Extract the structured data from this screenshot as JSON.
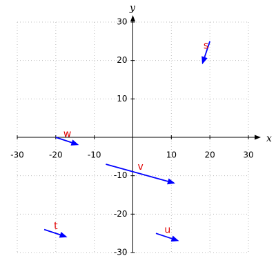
{
  "chart_data": {
    "type": "vector",
    "xlabel": "x",
    "ylabel": "y",
    "xlim": [
      -30,
      30
    ],
    "ylim": [
      -30,
      30
    ],
    "xticks": [
      -30,
      -20,
      -10,
      10,
      20,
      30
    ],
    "yticks": [
      -30,
      -20,
      -10,
      10,
      20,
      30
    ],
    "grid": true,
    "color": "#0000ff",
    "label_color": "#e00000",
    "vectors": [
      {
        "name": "s",
        "x": 20,
        "y": 25,
        "dx": -2,
        "dy": -6
      },
      {
        "name": "w",
        "x": -20,
        "y": 0,
        "dx": 6,
        "dy": -2
      },
      {
        "name": "v",
        "x": -7,
        "y": -7,
        "dx": 18,
        "dy": -5
      },
      {
        "name": "t",
        "x": -23,
        "y": -24,
        "dx": 6,
        "dy": -2
      },
      {
        "name": "u",
        "x": 6,
        "y": -25,
        "dx": 6,
        "dy": -2
      }
    ]
  }
}
